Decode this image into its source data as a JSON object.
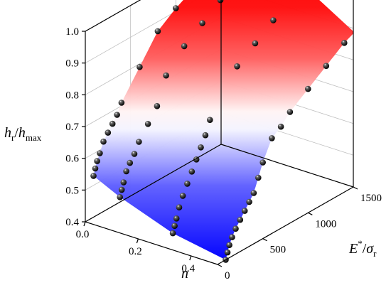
{
  "chart_data": {
    "type": "surface3d",
    "title": "",
    "axes": {
      "z": {
        "label_main": "h",
        "label_sub1": "r",
        "label_sep": "/",
        "label_main2": "h",
        "label_sub2": "max",
        "range": [
          0.4,
          1.0
        ],
        "ticks": [
          "0.4",
          "0.5",
          "0.6",
          "0.7",
          "0.8",
          "0.9",
          "1.0"
        ]
      },
      "x": {
        "label": "n",
        "range": [
          0.0,
          0.5
        ],
        "ticks": [
          "0.0",
          "0.2",
          "0.4"
        ]
      },
      "y": {
        "label_main": "E",
        "label_sup": "*",
        "label_sep": "/",
        "label_main2": "σ",
        "label_sub": "r",
        "range": [
          0,
          1500
        ],
        "ticks": [
          "0",
          "500",
          "1000",
          "1500"
        ]
      }
    },
    "colors": {
      "high": "#ff0000",
      "mid": "#ffffff",
      "low": "#0000ff",
      "points": "#000000",
      "frame": "#000000",
      "grid": "#bfbfbf"
    },
    "series": [
      {
        "name": "",
        "n": 0.0,
        "E": [
          90,
          110,
          130,
          160,
          200,
          250,
          300,
          350,
          400,
          600,
          800,
          1000,
          1200,
          1400
        ],
        "h": [
          0.53,
          0.55,
          0.57,
          0.59,
          0.62,
          0.64,
          0.66,
          0.68,
          0.71,
          0.79,
          0.87,
          0.91,
          0.94,
          0.95
        ]
      },
      {
        "name": "",
        "n": 0.1,
        "E": [
          90,
          110,
          130,
          160,
          200,
          250,
          300,
          400,
          500,
          600,
          800,
          1000,
          1200,
          1400
        ],
        "h": [
          0.49,
          0.51,
          0.53,
          0.56,
          0.58,
          0.6,
          0.63,
          0.67,
          0.71,
          0.79,
          0.85,
          0.89,
          0.93,
          0.96
        ]
      },
      {
        "name": "",
        "n": 0.3,
        "E": [
          90,
          110,
          130,
          160,
          200,
          250,
          300,
          350,
          400,
          450,
          500,
          800,
          1000,
          1200,
          1400
        ],
        "h": [
          0.43,
          0.45,
          0.47,
          0.5,
          0.53,
          0.56,
          0.59,
          0.62,
          0.65,
          0.68,
          0.72,
          0.84,
          0.88,
          0.92,
          0.97
        ]
      },
      {
        "name": "",
        "n": 0.5,
        "E": [
          90,
          110,
          130,
          160,
          200,
          250,
          300,
          350,
          400,
          450,
          500,
          600,
          700,
          800,
          1000,
          1200,
          1400
        ],
        "h": [
          0.4,
          0.42,
          0.44,
          0.46,
          0.48,
          0.5,
          0.52,
          0.54,
          0.56,
          0.6,
          0.64,
          0.7,
          0.72,
          0.75,
          0.79,
          0.83,
          0.87
        ]
      }
    ]
  }
}
